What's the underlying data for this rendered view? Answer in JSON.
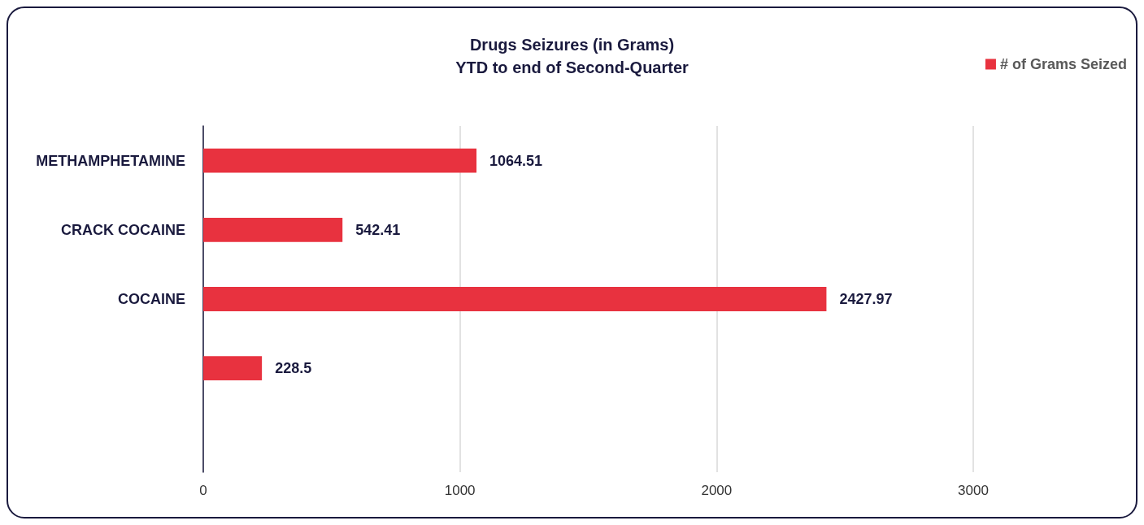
{
  "chart_data": {
    "type": "bar",
    "orientation": "horizontal",
    "title": "Drugs Seizures (in Grams)",
    "subtitle": "YTD to end of Second-Quarter",
    "categories": [
      "METHAMPHETAMINE",
      "CRACK COCAINE",
      "COCAINE",
      null,
      null
    ],
    "series": [
      {
        "name": "# of Grams Seized",
        "color": "#e8323f",
        "values": [
          1064.51,
          542.41,
          2427.97,
          228.5,
          null
        ]
      }
    ],
    "xlim": [
      0,
      3000
    ],
    "xticks": [
      0,
      1000,
      2000,
      3000
    ],
    "grid": "x",
    "legend": "top right",
    "data_labels": true
  }
}
